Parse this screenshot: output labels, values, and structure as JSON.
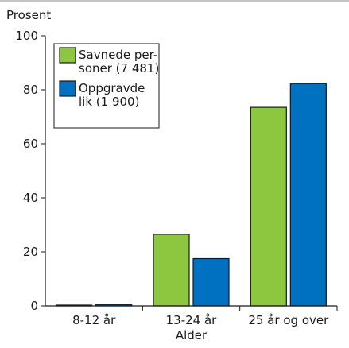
{
  "chart_data": {
    "type": "bar",
    "ylabel": "Prosent",
    "xlabel": "Alder",
    "ylim": [
      0,
      100
    ],
    "yticks": [
      0,
      20,
      40,
      60,
      80,
      100
    ],
    "categories": [
      "8-12 år",
      "13-24 år",
      "25 år og over"
    ],
    "series": [
      {
        "name_lines": [
          "Savnede per-",
          "soner (7 481)"
        ],
        "color": "#8dc63f",
        "values": [
          0.3,
          26.5,
          73.5
        ]
      },
      {
        "name_lines": [
          "Oppgravde",
          "lik (1 900)"
        ],
        "color": "#0070c0",
        "values": [
          0.5,
          17.5,
          82.3
        ]
      }
    ],
    "legend_position": "top-left",
    "grid": false
  }
}
